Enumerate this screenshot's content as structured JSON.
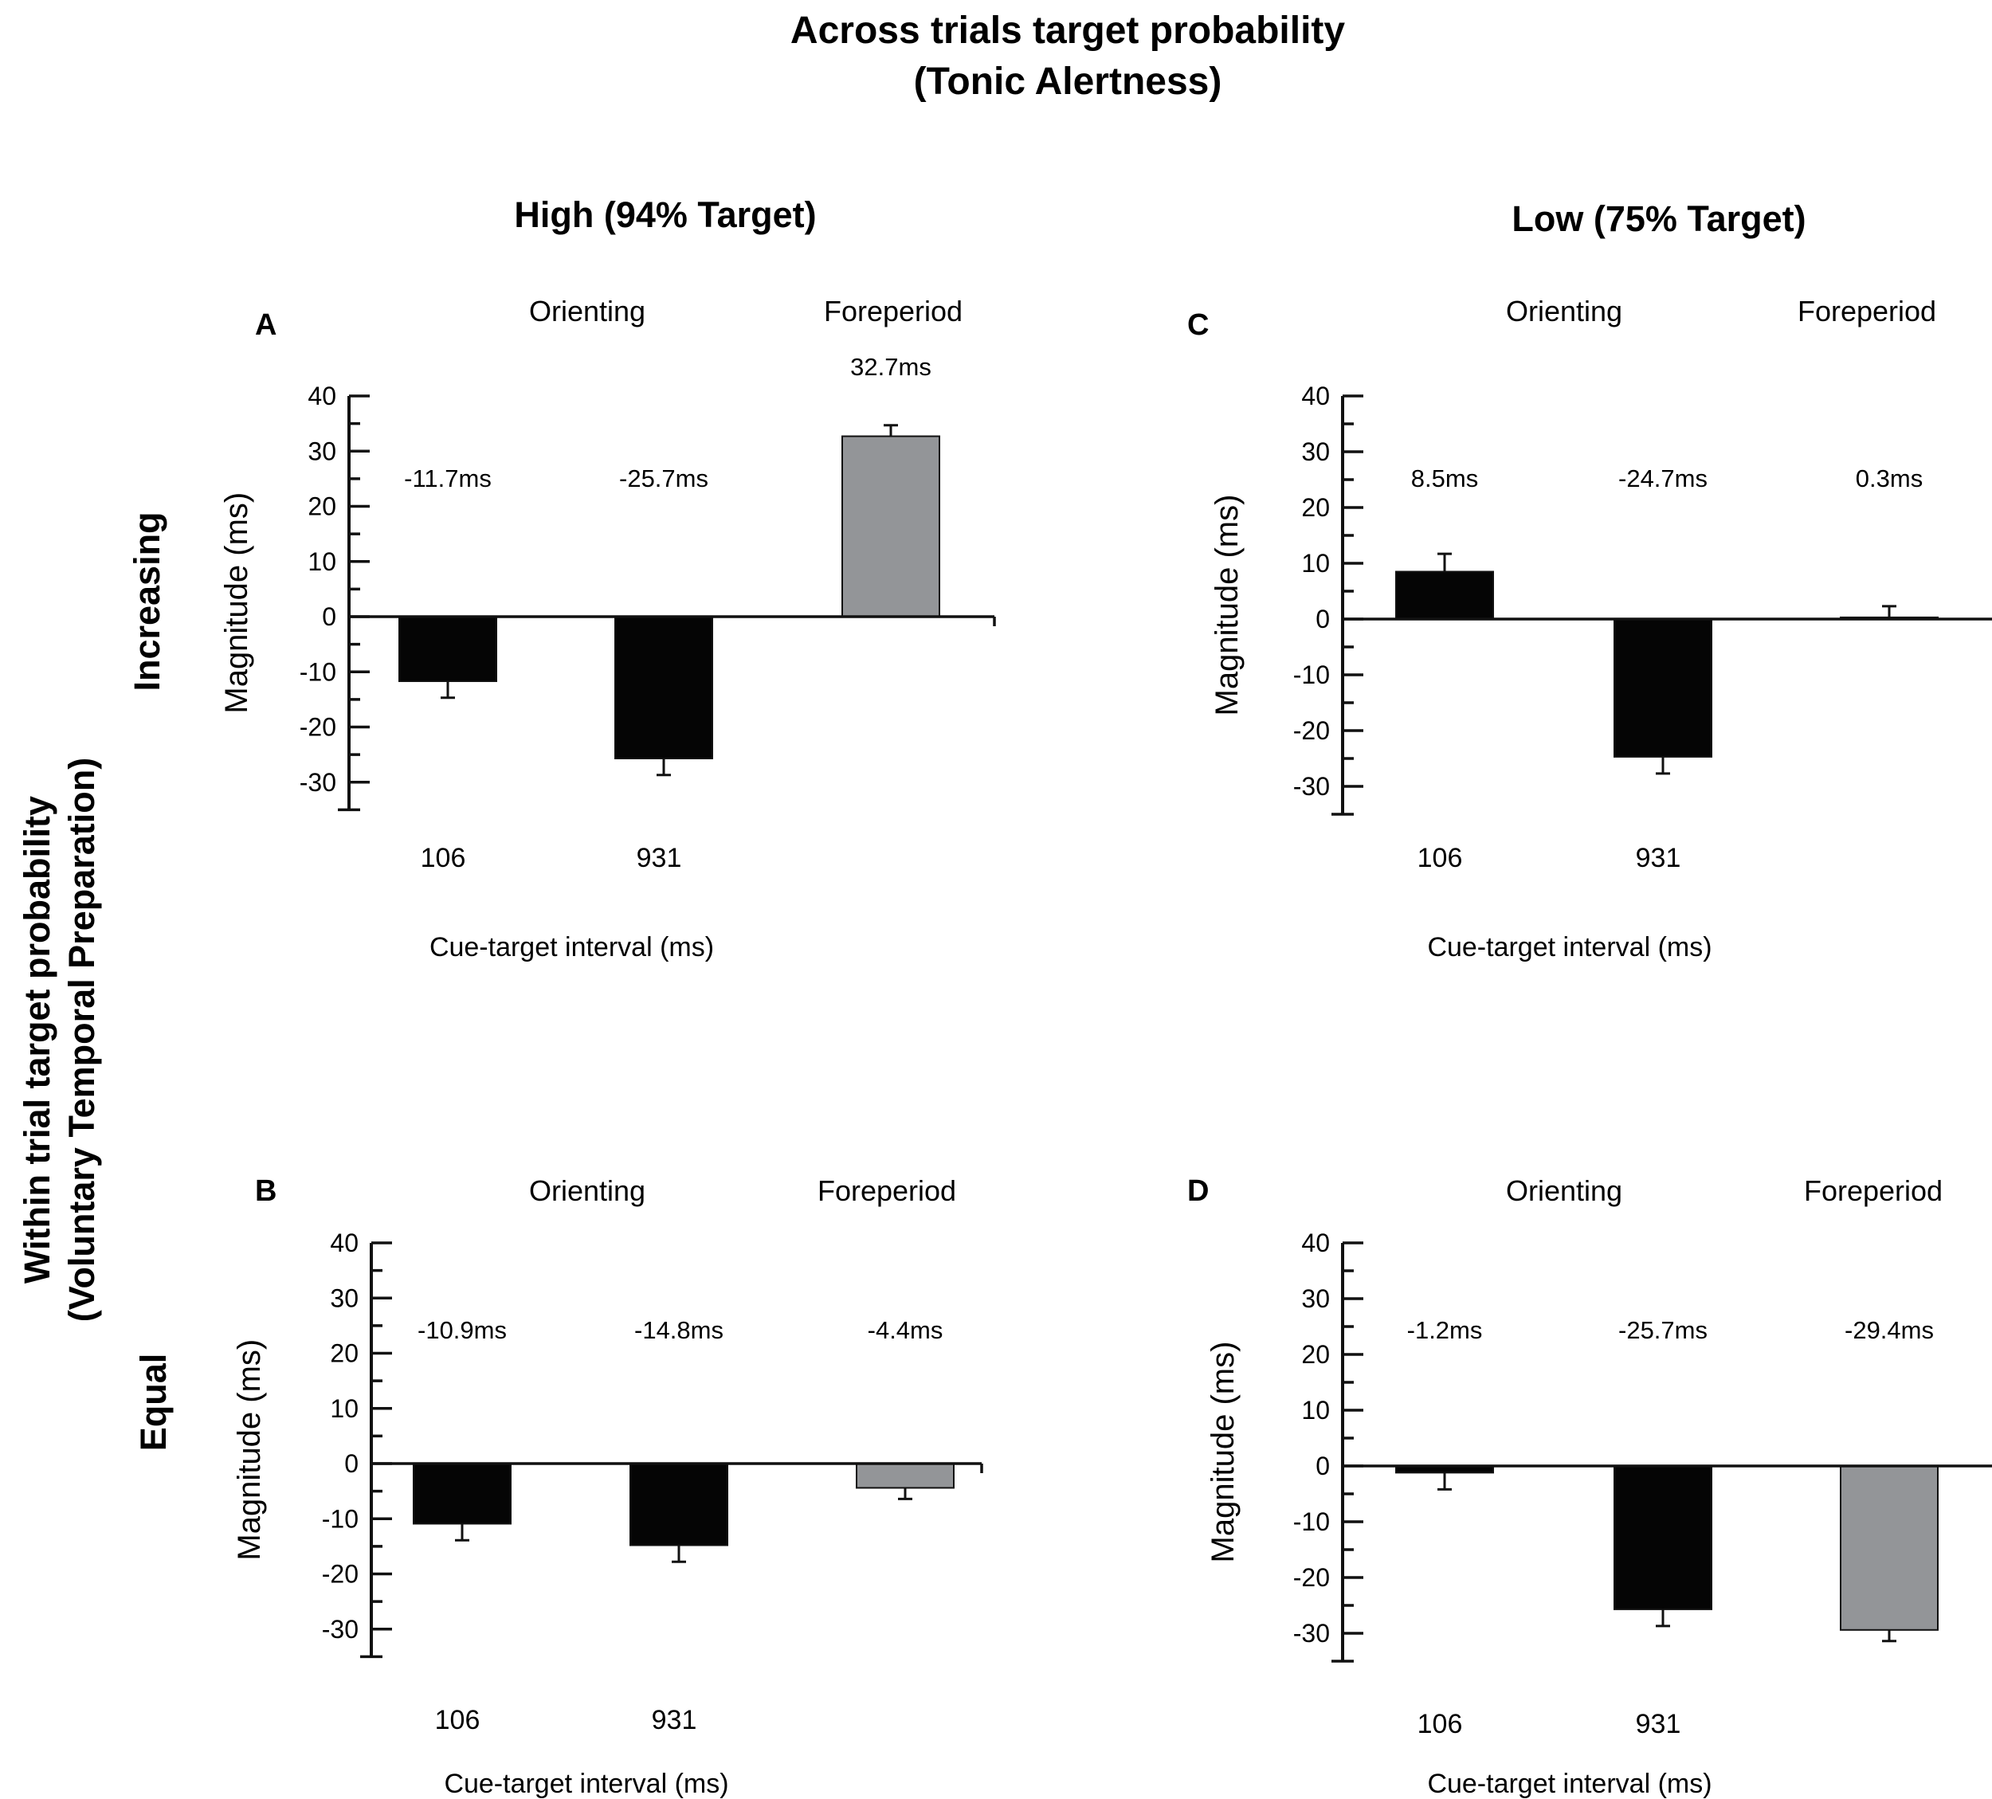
{
  "figure": {
    "title_line1": "Across trials target probability",
    "title_line2": "(Tonic Alertness)",
    "column_labels": [
      "High (94% Target)",
      "Low (75% Target)"
    ],
    "row_header_line1": "Within trial target probability",
    "row_header_line2": "(Voluntary Temporal Preparation)",
    "row_labels": [
      "Increasing",
      "Equal"
    ]
  },
  "colors": {
    "orienting": "#050505",
    "foreperiod": "#939598",
    "axis": "#111111"
  },
  "chart_data": [
    {
      "type": "bar",
      "panel": "A",
      "column": "High (94% Target)",
      "row": "Increasing",
      "group_labels": [
        "Orienting",
        "Foreperiod"
      ],
      "categories": [
        "106",
        "931",
        ""
      ],
      "values": [
        -11.7,
        -25.7,
        32.7
      ],
      "errors": [
        3.0,
        3.0,
        2.0
      ],
      "value_labels": [
        "-11.7ms",
        "-25.7ms",
        "32.7ms"
      ],
      "xlabel": "Cue-target interval (ms)",
      "ylabel": "Magnitude (ms)",
      "ylim": [
        -35,
        40
      ],
      "yticks": [
        40,
        30,
        20,
        10,
        0,
        -10,
        -20,
        -30
      ]
    },
    {
      "type": "bar",
      "panel": "B",
      "column": "High (94% Target)",
      "row": "Equal",
      "group_labels": [
        "Orienting",
        "Foreperiod"
      ],
      "categories": [
        "106",
        "931",
        ""
      ],
      "values": [
        -10.9,
        -14.8,
        -4.4
      ],
      "errors": [
        3.0,
        3.0,
        2.0
      ],
      "value_labels": [
        "-10.9ms",
        "-14.8ms",
        "-4.4ms"
      ],
      "xlabel": "Cue-target interval (ms)",
      "ylabel": "Magnitude (ms)",
      "ylim": [
        -35,
        40
      ],
      "yticks": [
        40,
        30,
        20,
        10,
        0,
        -10,
        -20,
        -30
      ]
    },
    {
      "type": "bar",
      "panel": "C",
      "column": "Low (75% Target)",
      "row": "Increasing",
      "group_labels": [
        "Orienting",
        "Foreperiod"
      ],
      "categories": [
        "106",
        "931",
        ""
      ],
      "values": [
        8.5,
        -24.7,
        0.3
      ],
      "errors": [
        3.2,
        3.0,
        2.0
      ],
      "value_labels": [
        "8.5ms",
        "-24.7ms",
        "0.3ms"
      ],
      "xlabel": "Cue-target interval (ms)",
      "ylabel": "Magnitude (ms)",
      "ylim": [
        -35,
        40
      ],
      "yticks": [
        40,
        30,
        20,
        10,
        0,
        -10,
        -20,
        -30
      ]
    },
    {
      "type": "bar",
      "panel": "D",
      "column": "Low (75% Target)",
      "row": "Equal",
      "group_labels": [
        "Orienting",
        "Foreperiod"
      ],
      "categories": [
        "106",
        "931",
        ""
      ],
      "values": [
        -1.2,
        -25.7,
        -29.4
      ],
      "errors": [
        3.0,
        3.0,
        2.0
      ],
      "value_labels": [
        "-1.2ms",
        "-25.7ms",
        "-29.4ms"
      ],
      "xlabel": "Cue-target interval (ms)",
      "ylabel": "Magnitude (ms)",
      "ylim": [
        -35,
        40
      ],
      "yticks": [
        40,
        30,
        20,
        10,
        0,
        -10,
        -20,
        -30
      ]
    }
  ]
}
